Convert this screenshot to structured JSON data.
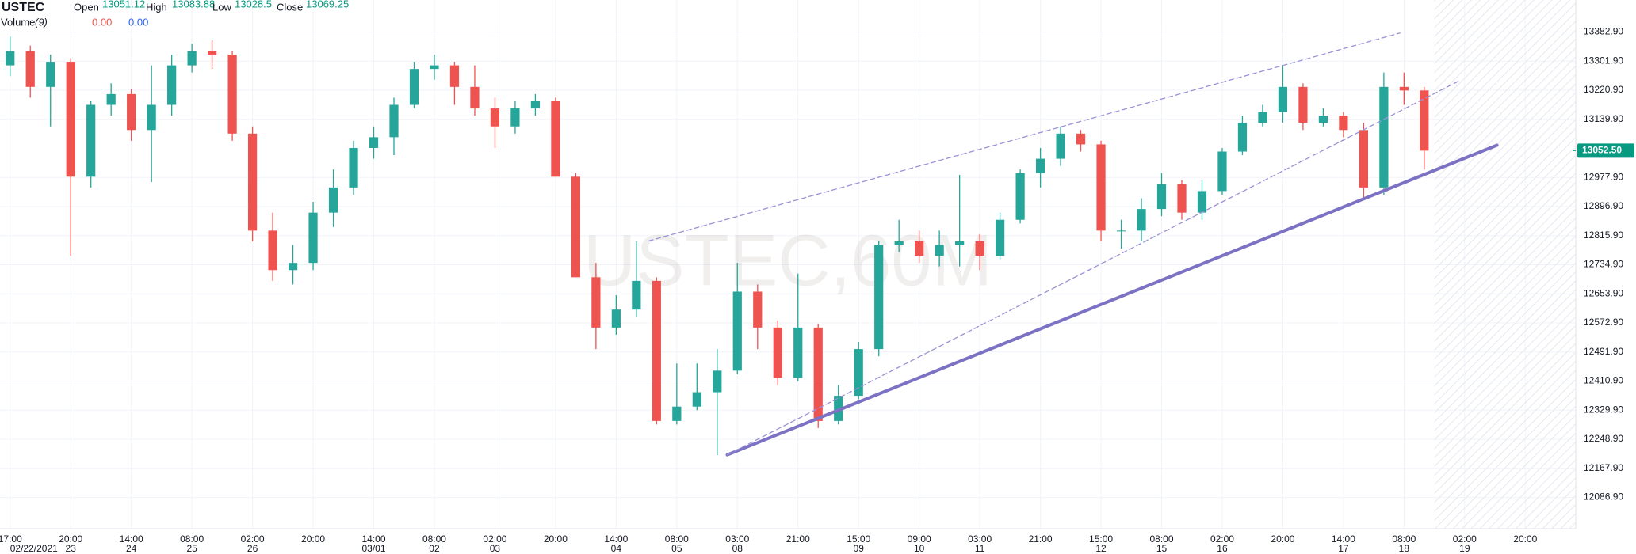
{
  "chart_data": {
    "type": "candlestick",
    "symbol": "USTEC",
    "watermark": "USTEC,60M",
    "legend": [
      {
        "label": "Open",
        "value": 13051.12
      },
      {
        "label": "High",
        "value": 13083.88
      },
      {
        "label": "Low",
        "value": 13028.5
      },
      {
        "label": "Close",
        "value": 13069.25
      }
    ],
    "volume_label": "Volume",
    "volume_period": "(9)",
    "volume_values": [
      "0.00",
      "0.00"
    ],
    "volume_colors": [
      "#ef5350",
      "#2962ff"
    ],
    "up_color": "#26a69a",
    "down_color": "#ef5350",
    "legend_value_color": "#089981",
    "categories": [
      "17:00",
      null,
      null,
      "20:00",
      null,
      null,
      "14:00",
      null,
      null,
      "08:00",
      null,
      null,
      "02:00",
      null,
      null,
      "20:00",
      null,
      null,
      "14:00",
      null,
      null,
      "08:00",
      null,
      null,
      "02:00",
      null,
      null,
      "20:00",
      null,
      null,
      "14:00",
      null,
      null,
      "08:00",
      null,
      null,
      "03:00",
      null,
      null,
      "21:00",
      null,
      null,
      "15:00",
      null,
      null,
      "09:00",
      null,
      null,
      "03:00",
      null,
      null,
      "21:00",
      null,
      null,
      "15:00",
      null,
      null,
      "08:00",
      null,
      null,
      "02:00",
      null,
      null,
      "20:00",
      null,
      null,
      "14:00",
      null,
      null,
      "08:00",
      null,
      null,
      "02:00",
      null,
      null,
      "20:00",
      null,
      null
    ],
    "category_dates": [
      "02/22/2021",
      null,
      null,
      "23",
      null,
      null,
      "24",
      null,
      null,
      "25",
      null,
      null,
      "26",
      null,
      null,
      null,
      null,
      null,
      "03/01",
      null,
      null,
      "02",
      null,
      null,
      "03",
      null,
      null,
      null,
      null,
      null,
      "04",
      null,
      null,
      "05",
      null,
      null,
      "08",
      null,
      null,
      null,
      null,
      null,
      "09",
      null,
      null,
      "10",
      null,
      null,
      "11",
      null,
      null,
      null,
      null,
      null,
      "12",
      null,
      null,
      "15",
      null,
      null,
      "16",
      null,
      null,
      null,
      null,
      null,
      "17",
      null,
      null,
      "18",
      null,
      null,
      "19",
      null,
      null,
      null,
      null,
      null
    ],
    "open": [
      13290,
      13330,
      13230,
      13300,
      12980,
      13180,
      13210,
      13110,
      13180,
      13290,
      13330,
      13320,
      13100,
      12830,
      12720,
      12740,
      12880,
      12950,
      13060,
      13090,
      13180,
      13280,
      13290,
      13230,
      13170,
      13120,
      13170,
      13190,
      12980,
      12700,
      12560,
      12610,
      12690,
      12300,
      12340,
      12380,
      12440,
      12660,
      12560,
      12420,
      12560,
      12300,
      12370,
      12500,
      12790,
      12800,
      12760,
      12790,
      12800,
      12760,
      12860,
      12990,
      13030,
      13100,
      13070,
      12830,
      12830,
      12890,
      12960,
      12880,
      12940,
      13050,
      13130,
      13160,
      13230,
      13130,
      13150,
      13110,
      12950,
      13230,
      13220,
      null,
      null,
      null,
      null,
      null,
      null,
      null
    ],
    "high": [
      13370,
      13345,
      13320,
      13310,
      13190,
      13240,
      13225,
      13290,
      13320,
      13350,
      13360,
      13330,
      13120,
      12880,
      12790,
      12910,
      13000,
      13080,
      13120,
      13200,
      13300,
      13320,
      13300,
      13290,
      13200,
      13190,
      13210,
      13200,
      12990,
      12740,
      12650,
      12800,
      12700,
      12460,
      12460,
      12500,
      12740,
      12680,
      12580,
      12710,
      12570,
      12400,
      12520,
      12800,
      12860,
      12830,
      12830,
      12985,
      12820,
      12880,
      13000,
      13060,
      13120,
      13110,
      13080,
      12860,
      12920,
      12990,
      12970,
      12970,
      13060,
      13150,
      13180,
      13290,
      13240,
      13170,
      13160,
      13130,
      13270,
      13270,
      13230,
      null,
      null,
      null,
      null,
      null,
      null,
      null
    ],
    "low": [
      13260,
      13200,
      13120,
      12760,
      12950,
      13150,
      13080,
      12965,
      13150,
      13270,
      13280,
      13080,
      12800,
      12690,
      12680,
      12720,
      12840,
      12930,
      13030,
      13040,
      13170,
      13250,
      13180,
      13150,
      13060,
      13100,
      13150,
      12980,
      12700,
      12500,
      12540,
      12590,
      12290,
      12290,
      12330,
      12205,
      12430,
      12500,
      12400,
      12410,
      12280,
      12290,
      12360,
      12480,
      12770,
      12740,
      12730,
      12730,
      12720,
      12750,
      12850,
      12950,
      13010,
      13050,
      12800,
      12780,
      12800,
      12870,
      12860,
      12860,
      12930,
      13040,
      13120,
      13130,
      13110,
      13120,
      13090,
      12920,
      12930,
      13180,
      13000,
      null,
      null,
      null,
      null,
      null,
      null,
      null
    ],
    "close": [
      13330,
      13230,
      13300,
      12980,
      13180,
      13210,
      13110,
      13180,
      13290,
      13330,
      13320,
      13100,
      12830,
      12720,
      12740,
      12880,
      12950,
      13060,
      13090,
      13180,
      13280,
      13290,
      13230,
      13170,
      13120,
      13170,
      13190,
      12980,
      12700,
      12560,
      12610,
      12690,
      12300,
      12340,
      12380,
      12440,
      12660,
      12560,
      12420,
      12560,
      12300,
      12370,
      12500,
      12790,
      12800,
      12760,
      12790,
      12800,
      12760,
      12860,
      12990,
      13030,
      13100,
      13070,
      12830,
      12830,
      12890,
      12960,
      12880,
      12940,
      13050,
      13130,
      13160,
      13230,
      13130,
      13150,
      13110,
      12950,
      13230,
      13220,
      13052.5,
      null,
      null,
      null,
      null,
      null,
      null,
      null
    ],
    "last_price": {
      "value": 13052.5,
      "label": "13052.50"
    },
    "last_price_color": "#089981",
    "ylim": [
      12000,
      13472
    ],
    "yticks": [
      {
        "value": 13382.9,
        "label": "13382.90"
      },
      {
        "value": 13301.9,
        "label": "13301.90"
      },
      {
        "value": 13220.9,
        "label": "13220.90"
      },
      {
        "value": 13139.9,
        "label": "13139.90"
      },
      {
        "value": 12977.9,
        "label": "12977.90"
      },
      {
        "value": 12896.9,
        "label": "12896.90"
      },
      {
        "value": 12815.9,
        "label": "12815.90"
      },
      {
        "value": 12734.9,
        "label": "12734.90"
      },
      {
        "value": 12653.9,
        "label": "12653.90"
      },
      {
        "value": 12572.9,
        "label": "12572.90"
      },
      {
        "value": 12491.9,
        "label": "12491.90"
      },
      {
        "value": 12410.9,
        "label": "12410.90"
      },
      {
        "value": 12329.9,
        "label": "12329.90"
      },
      {
        "value": 12248.9,
        "label": "12248.90"
      },
      {
        "value": 12167.9,
        "label": "12167.90"
      },
      {
        "value": 12086.9,
        "label": "12086.90"
      }
    ],
    "grid": true,
    "trendlines": [
      {
        "x": [
          35.5,
          73.6
        ],
        "y": [
          12205.6,
          13067.6
        ],
        "color": "#7b72c4",
        "width": 4,
        "dashed": false
      },
      {
        "x": [
          31.6,
          68.8
        ],
        "y": [
          12801,
          13380
        ],
        "color": "#9a92d6",
        "width": 1.3,
        "dashed": true
      },
      {
        "x": [
          35.5,
          71.7
        ],
        "y": [
          12205.6,
          13246
        ],
        "color": "#9a92d6",
        "width": 1.3,
        "dashed": true
      }
    ]
  }
}
